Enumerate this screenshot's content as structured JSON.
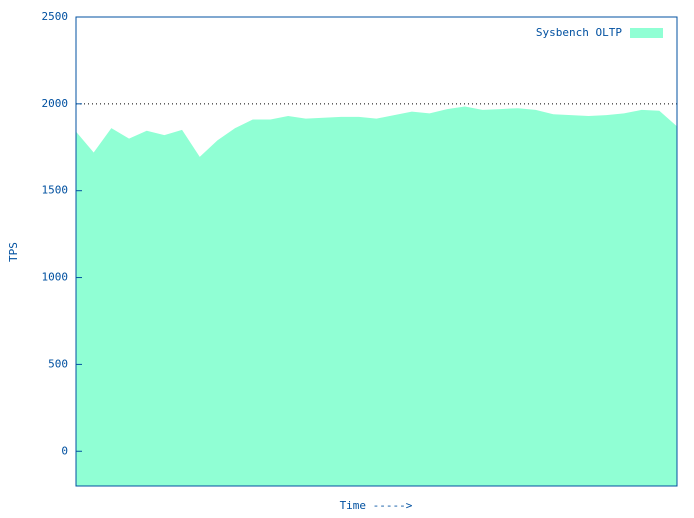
{
  "chart_data": {
    "type": "area",
    "ylabel": "TPS",
    "xlabel": "Time ----->",
    "series": [
      {
        "name": "Sysbench OLTP",
        "color": "#90ffd4",
        "values": [
          1840,
          1720,
          1860,
          1800,
          1845,
          1820,
          1850,
          1695,
          1790,
          1860,
          1910,
          1910,
          1930,
          1915,
          1920,
          1925,
          1925,
          1915,
          1935,
          1955,
          1945,
          1970,
          1985,
          1965,
          1970,
          1975,
          1965,
          1940,
          1935,
          1930,
          1935,
          1945,
          1965,
          1960,
          1870
        ]
      }
    ],
    "ylim": [
      -200,
      2500
    ],
    "yticks": [
      0,
      500,
      1000,
      1500,
      2000,
      2500
    ],
    "reference_line": 2000,
    "legend": "top-right"
  }
}
